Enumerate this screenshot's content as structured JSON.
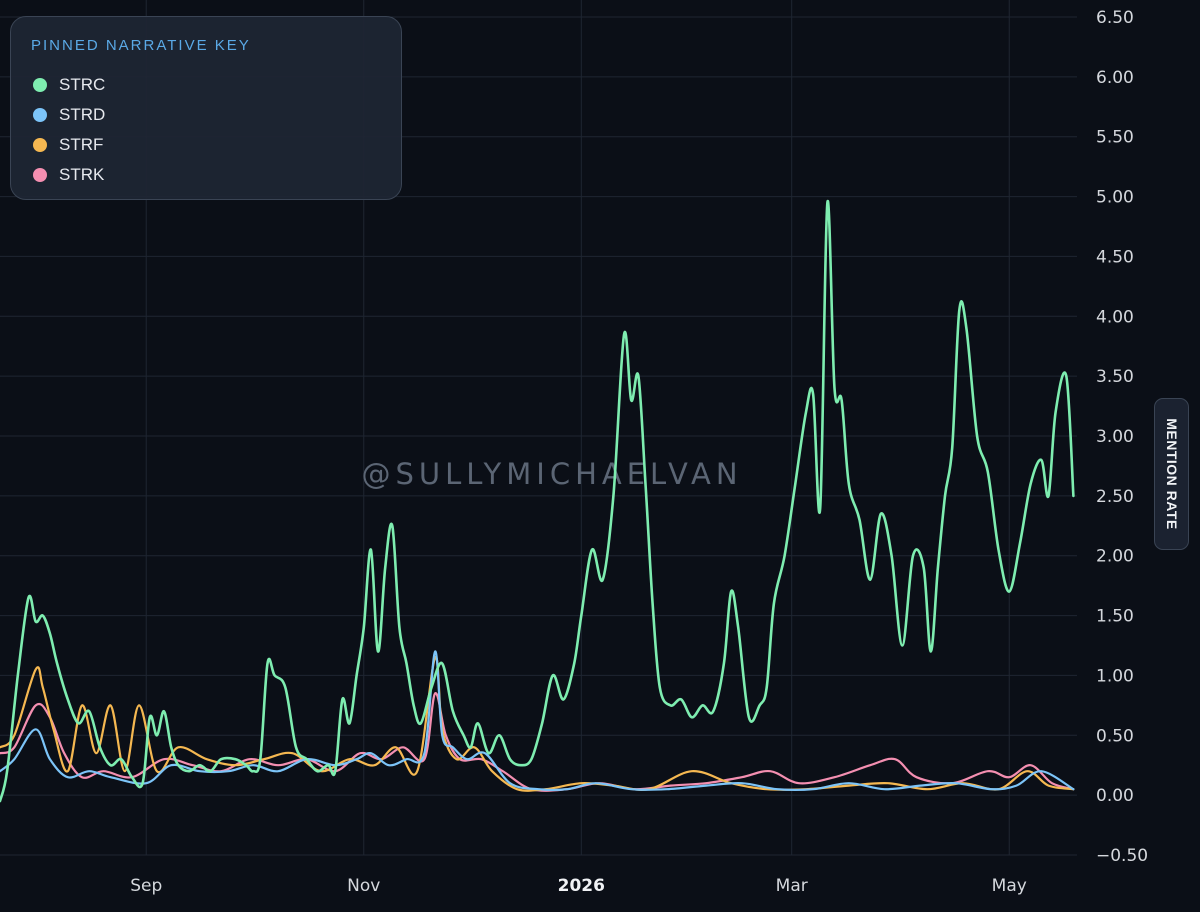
{
  "legend": {
    "title": "PINNED NARRATIVE KEY",
    "items": [
      {
        "label": "STRC",
        "color": "#7eedb0"
      },
      {
        "label": "STRD",
        "color": "#7cc4f8"
      },
      {
        "label": "STRF",
        "color": "#f5b851"
      },
      {
        "label": "STRK",
        "color": "#f48fb1"
      }
    ]
  },
  "watermark": "@SULLYMICHAELVAN",
  "y_axis_title": "MENTION RATE",
  "chart_data": {
    "type": "line",
    "ylabel": "MENTION RATE",
    "ylim": [
      -0.5,
      6.5
    ],
    "xlim": [
      "2025-07-22",
      "2026-05-20"
    ],
    "grid": true,
    "legend_position": "top-left",
    "y_ticks": [
      "6.50",
      "6.00",
      "5.50",
      "5.00",
      "4.50",
      "4.00",
      "3.50",
      "3.00",
      "2.50",
      "2.00",
      "1.50",
      "1.00",
      "0.50",
      "0.00",
      "−0.50"
    ],
    "x_ticks": [
      {
        "date": "2025-09-01",
        "label": "Sep",
        "bold": false
      },
      {
        "date": "2025-11-01",
        "label": "Nov",
        "bold": false
      },
      {
        "date": "2026-01-01",
        "label": "2026",
        "bold": true
      },
      {
        "date": "2026-03-01",
        "label": "Mar",
        "bold": false
      },
      {
        "date": "2026-05-01",
        "label": "May",
        "bold": false
      }
    ],
    "series": [
      {
        "name": "STRC",
        "color": "#7eedb0",
        "x": [
          "2025-07-22",
          "2025-07-24",
          "2025-07-27",
          "2025-07-30",
          "2025-08-01",
          "2025-08-03",
          "2025-08-05",
          "2025-08-07",
          "2025-08-10",
          "2025-08-13",
          "2025-08-16",
          "2025-08-19",
          "2025-08-22",
          "2025-08-25",
          "2025-08-28",
          "2025-08-31",
          "2025-09-02",
          "2025-09-04",
          "2025-09-06",
          "2025-09-08",
          "2025-09-10",
          "2025-09-13",
          "2025-09-16",
          "2025-09-19",
          "2025-09-22",
          "2025-09-26",
          "2025-09-29",
          "2025-10-01",
          "2025-10-03",
          "2025-10-05",
          "2025-10-07",
          "2025-10-10",
          "2025-10-13",
          "2025-10-16",
          "2025-10-19",
          "2025-10-22",
          "2025-10-24",
          "2025-10-26",
          "2025-10-28",
          "2025-10-30",
          "2025-11-01",
          "2025-11-03",
          "2025-11-05",
          "2025-11-07",
          "2025-11-09",
          "2025-11-11",
          "2025-11-13",
          "2025-11-15",
          "2025-11-17",
          "2025-11-20",
          "2025-11-23",
          "2025-11-26",
          "2025-11-29",
          "2025-12-01",
          "2025-12-03",
          "2025-12-06",
          "2025-12-09",
          "2025-12-12",
          "2025-12-15",
          "2025-12-18",
          "2025-12-21",
          "2025-12-24",
          "2025-12-27",
          "2025-12-30",
          "2026-01-01",
          "2026-01-04",
          "2026-01-07",
          "2026-01-10",
          "2026-01-13",
          "2026-01-15",
          "2026-01-17",
          "2026-01-19",
          "2026-01-21",
          "2026-01-23",
          "2026-01-26",
          "2026-01-29",
          "2026-02-01",
          "2026-02-04",
          "2026-02-07",
          "2026-02-10",
          "2026-02-12",
          "2026-02-14",
          "2026-02-17",
          "2026-02-20",
          "2026-02-22",
          "2026-02-24",
          "2026-02-27",
          "2026-03-02",
          "2026-03-05",
          "2026-03-07",
          "2026-03-09",
          "2026-03-11",
          "2026-03-13",
          "2026-03-15",
          "2026-03-17",
          "2026-03-20",
          "2026-03-23",
          "2026-03-26",
          "2026-03-29",
          "2026-04-01",
          "2026-04-04",
          "2026-04-07",
          "2026-04-09",
          "2026-04-11",
          "2026-04-13",
          "2026-04-15",
          "2026-04-17",
          "2026-04-19",
          "2026-04-22",
          "2026-04-25",
          "2026-04-28",
          "2026-05-01",
          "2026-05-04",
          "2026-05-07",
          "2026-05-10",
          "2026-05-12",
          "2026-05-14",
          "2026-05-17",
          "2026-05-19"
        ],
        "values": [
          -0.05,
          0.2,
          1.0,
          1.65,
          1.45,
          1.5,
          1.35,
          1.1,
          0.8,
          0.6,
          0.7,
          0.4,
          0.25,
          0.3,
          0.15,
          0.1,
          0.65,
          0.5,
          0.7,
          0.4,
          0.25,
          0.2,
          0.25,
          0.2,
          0.3,
          0.3,
          0.25,
          0.2,
          0.3,
          1.1,
          1.0,
          0.9,
          0.4,
          0.3,
          0.2,
          0.25,
          0.2,
          0.8,
          0.6,
          1.0,
          1.4,
          2.05,
          1.2,
          1.9,
          2.25,
          1.4,
          1.1,
          0.75,
          0.6,
          0.9,
          1.1,
          0.7,
          0.5,
          0.4,
          0.6,
          0.35,
          0.5,
          0.3,
          0.25,
          0.3,
          0.6,
          1.0,
          0.8,
          1.1,
          1.5,
          2.05,
          1.8,
          2.5,
          3.85,
          3.3,
          3.5,
          2.6,
          1.6,
          0.9,
          0.75,
          0.8,
          0.65,
          0.75,
          0.7,
          1.1,
          1.7,
          1.4,
          0.65,
          0.75,
          0.9,
          1.6,
          2.0,
          2.6,
          3.2,
          3.35,
          2.4,
          4.95,
          3.4,
          3.3,
          2.6,
          2.3,
          1.8,
          2.35,
          2.0,
          1.25,
          2.0,
          1.9,
          1.2,
          1.9,
          2.5,
          2.9,
          4.05,
          3.9,
          3.0,
          2.7,
          2.05,
          1.7,
          2.1,
          2.6,
          2.8,
          2.5,
          3.2,
          3.5,
          2.5
        ]
      },
      {
        "name": "STRD",
        "color": "#7cc4f8",
        "x": [
          "2025-07-22",
          "2025-07-26",
          "2025-08-01",
          "2025-08-05",
          "2025-08-10",
          "2025-08-16",
          "2025-08-22",
          "2025-09-01",
          "2025-09-08",
          "2025-09-16",
          "2025-09-24",
          "2025-10-01",
          "2025-10-08",
          "2025-10-16",
          "2025-10-24",
          "2025-10-30",
          "2025-11-03",
          "2025-11-08",
          "2025-11-13",
          "2025-11-18",
          "2025-11-21",
          "2025-11-23",
          "2025-11-26",
          "2025-11-30",
          "2025-12-05",
          "2025-12-12",
          "2025-12-20",
          "2025-12-28",
          "2026-01-05",
          "2026-01-15",
          "2026-01-25",
          "2026-02-05",
          "2026-02-15",
          "2026-02-25",
          "2026-03-07",
          "2026-03-17",
          "2026-03-27",
          "2026-04-06",
          "2026-04-16",
          "2026-04-26",
          "2026-05-03",
          "2026-05-10",
          "2026-05-19"
        ],
        "values": [
          0.2,
          0.3,
          0.55,
          0.3,
          0.15,
          0.2,
          0.15,
          0.1,
          0.25,
          0.2,
          0.2,
          0.25,
          0.2,
          0.3,
          0.25,
          0.3,
          0.35,
          0.25,
          0.3,
          0.35,
          1.2,
          0.5,
          0.4,
          0.3,
          0.35,
          0.1,
          0.05,
          0.05,
          0.1,
          0.05,
          0.05,
          0.08,
          0.1,
          0.05,
          0.05,
          0.1,
          0.05,
          0.08,
          0.1,
          0.05,
          0.08,
          0.2,
          0.05
        ]
      },
      {
        "name": "STRF",
        "color": "#f5b851",
        "x": [
          "2025-07-22",
          "2025-07-26",
          "2025-08-01",
          "2025-08-03",
          "2025-08-06",
          "2025-08-10",
          "2025-08-14",
          "2025-08-18",
          "2025-08-22",
          "2025-08-26",
          "2025-08-30",
          "2025-09-04",
          "2025-09-10",
          "2025-09-18",
          "2025-09-26",
          "2025-10-04",
          "2025-10-12",
          "2025-10-20",
          "2025-10-28",
          "2025-11-04",
          "2025-11-10",
          "2025-11-16",
          "2025-11-21",
          "2025-11-23",
          "2025-11-27",
          "2025-12-02",
          "2025-12-07",
          "2025-12-14",
          "2025-12-22",
          "2026-01-01",
          "2026-01-10",
          "2026-01-20",
          "2026-02-01",
          "2026-02-12",
          "2026-02-22",
          "2026-03-05",
          "2026-03-17",
          "2026-03-28",
          "2026-04-08",
          "2026-04-18",
          "2026-04-28",
          "2026-05-06",
          "2026-05-12",
          "2026-05-19"
        ],
        "values": [
          0.4,
          0.5,
          1.05,
          0.9,
          0.55,
          0.2,
          0.75,
          0.35,
          0.75,
          0.2,
          0.75,
          0.2,
          0.4,
          0.3,
          0.25,
          0.3,
          0.35,
          0.2,
          0.3,
          0.25,
          0.4,
          0.2,
          1.15,
          0.55,
          0.3,
          0.4,
          0.2,
          0.05,
          0.05,
          0.1,
          0.08,
          0.05,
          0.2,
          0.1,
          0.05,
          0.05,
          0.08,
          0.1,
          0.05,
          0.1,
          0.05,
          0.2,
          0.08,
          0.05
        ]
      },
      {
        "name": "STRK",
        "color": "#f48fb1",
        "x": [
          "2025-07-22",
          "2025-07-26",
          "2025-08-01",
          "2025-08-05",
          "2025-08-09",
          "2025-08-14",
          "2025-08-20",
          "2025-08-28",
          "2025-09-06",
          "2025-09-14",
          "2025-09-22",
          "2025-09-30",
          "2025-10-08",
          "2025-10-16",
          "2025-10-24",
          "2025-10-31",
          "2025-11-06",
          "2025-11-12",
          "2025-11-18",
          "2025-11-21",
          "2025-11-24",
          "2025-11-28",
          "2025-12-04",
          "2025-12-10",
          "2025-12-18",
          "2025-12-28",
          "2026-01-06",
          "2026-01-16",
          "2026-01-26",
          "2026-02-05",
          "2026-02-15",
          "2026-02-23",
          "2026-03-03",
          "2026-03-13",
          "2026-03-23",
          "2026-03-30",
          "2026-04-05",
          "2026-04-15",
          "2026-04-25",
          "2026-05-01",
          "2026-05-07",
          "2026-05-13",
          "2026-05-19"
        ],
        "values": [
          0.35,
          0.4,
          0.75,
          0.65,
          0.35,
          0.15,
          0.2,
          0.15,
          0.3,
          0.25,
          0.2,
          0.3,
          0.25,
          0.3,
          0.2,
          0.35,
          0.3,
          0.4,
          0.3,
          0.85,
          0.5,
          0.3,
          0.3,
          0.2,
          0.05,
          0.05,
          0.1,
          0.05,
          0.08,
          0.1,
          0.15,
          0.2,
          0.1,
          0.15,
          0.25,
          0.3,
          0.15,
          0.1,
          0.2,
          0.15,
          0.25,
          0.1,
          0.05
        ]
      }
    ]
  }
}
